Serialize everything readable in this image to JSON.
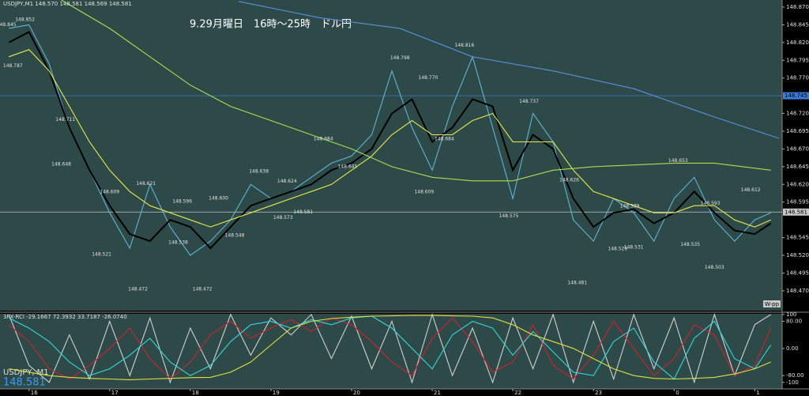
{
  "header": "USDJPY,M1  148.570 148.581 148.569 148.581",
  "symbol_label": "USDJPY, M1",
  "bid": "148.581",
  "pivot_label": "W-pp",
  "chart_data": [
    {
      "type": "line",
      "title": "9.29月曜日　16時～25時　ドル円",
      "xlim": [
        15.64,
        25.34
      ],
      "xticks": [
        16,
        17,
        18,
        19,
        20,
        21,
        22,
        23,
        {
          "value": 24,
          "label": "0"
        },
        {
          "value": 25,
          "label": "1"
        }
      ],
      "ylim": [
        148.442,
        148.88
      ],
      "yticks": [
        {
          "value": 148.87,
          "label": "148.870"
        },
        {
          "value": 148.845,
          "label": "148.845"
        },
        {
          "value": 148.82,
          "label": "148.820"
        },
        {
          "value": 148.795,
          "label": "148.795"
        },
        {
          "value": 148.77,
          "label": "148.770"
        },
        {
          "value": 148.72,
          "label": "148.720"
        },
        {
          "value": 148.695,
          "label": "148.695"
        },
        {
          "value": 148.67,
          "label": "148.670"
        },
        {
          "value": 148.645,
          "label": "148.645"
        },
        {
          "value": 148.62,
          "label": "148.620"
        },
        {
          "value": 148.595,
          "label": "148.595"
        },
        {
          "value": 148.545,
          "label": "148.545"
        },
        {
          "value": 148.52,
          "label": "148.520"
        },
        {
          "value": 148.495,
          "label": "148.495"
        },
        {
          "value": 148.47,
          "label": "148.470"
        }
      ],
      "x": [
        15.75,
        16.0,
        16.25,
        16.5,
        16.75,
        17.0,
        17.25,
        17.5,
        17.75,
        18.0,
        18.25,
        18.5,
        18.75,
        19.0,
        19.25,
        19.5,
        19.75,
        20.0,
        20.25,
        20.5,
        20.75,
        21.0,
        21.25,
        21.5,
        21.75,
        22.0,
        22.25,
        22.5,
        22.75,
        23.0,
        23.25,
        23.5,
        23.75,
        24.0,
        24.25,
        24.5,
        24.75,
        25.0,
        25.2
      ],
      "series": [
        {
          "name": "USDJPY",
          "color": "#5fb4d8",
          "values": [
            148.84,
            148.845,
            148.79,
            148.7,
            148.64,
            148.58,
            148.53,
            148.62,
            148.56,
            148.52,
            148.54,
            148.57,
            148.62,
            148.6,
            148.61,
            148.63,
            148.65,
            148.66,
            148.69,
            148.78,
            148.7,
            148.64,
            148.73,
            148.8,
            148.7,
            148.6,
            148.72,
            148.68,
            148.57,
            148.54,
            148.6,
            148.58,
            148.54,
            148.6,
            148.63,
            148.57,
            148.54,
            148.57,
            148.58
          ]
        },
        {
          "name": "MA-fast",
          "color": "#000000",
          "values": [
            148.82,
            148.835,
            148.78,
            148.7,
            148.64,
            148.59,
            148.55,
            148.54,
            148.57,
            148.56,
            148.53,
            148.56,
            148.59,
            148.6,
            148.61,
            148.62,
            148.64,
            148.65,
            148.67,
            148.72,
            148.74,
            148.68,
            148.7,
            148.74,
            148.73,
            148.64,
            148.69,
            148.67,
            148.6,
            148.56,
            148.58,
            148.585,
            148.565,
            148.58,
            148.61,
            148.58,
            148.555,
            148.55,
            148.565
          ]
        },
        {
          "name": "MA-mid",
          "color": "#e8e84a",
          "values": [
            148.8,
            148.81,
            148.78,
            148.73,
            148.68,
            148.64,
            148.61,
            148.59,
            148.58,
            148.57,
            148.56,
            148.57,
            148.58,
            148.59,
            148.6,
            148.61,
            148.62,
            148.64,
            148.66,
            148.69,
            148.71,
            148.69,
            148.69,
            148.71,
            148.72,
            148.68,
            148.68,
            148.68,
            148.64,
            148.61,
            148.6,
            148.59,
            148.58,
            148.58,
            148.59,
            148.59,
            148.57,
            148.56,
            148.57
          ]
        },
        {
          "name": "Step-line",
          "color": "#a8e050",
          "x": [
            16.4,
            17.0,
            17.5,
            18.0,
            18.5,
            19.0,
            19.5,
            20.0,
            20.5,
            21.0,
            21.5,
            22.0,
            22.5,
            23.0,
            24.0,
            24.5,
            25.2
          ],
          "values": [
            148.88,
            148.84,
            148.8,
            148.76,
            148.73,
            148.71,
            148.69,
            148.67,
            148.645,
            148.63,
            148.625,
            148.625,
            148.64,
            148.645,
            148.65,
            148.65,
            148.64
          ]
        },
        {
          "name": "MA-long",
          "color": "#5a8fe0",
          "x": [
            18.6,
            19.6,
            20.6,
            21.5,
            22.5,
            23.5,
            24.5,
            25.3
          ],
          "values": [
            148.878,
            148.855,
            148.84,
            148.8,
            148.78,
            148.755,
            148.715,
            148.685
          ]
        }
      ],
      "labels": {
        "x": [
          15.72,
          15.95,
          15.8,
          16.45,
          16.4,
          17.0,
          16.9,
          17.35,
          17.45,
          17.85,
          17.9,
          18.15,
          18.35,
          18.55,
          18.85,
          19.15,
          19.2,
          19.4,
          19.65,
          19.95,
          20.6,
          20.95,
          21.4,
          21.15,
          20.9,
          22.2,
          21.95,
          22.7,
          22.8,
          23.45,
          23.3,
          23.5,
          24.05,
          24.45,
          24.2,
          24.5,
          24.95
        ],
        "values": [
          148.845,
          148.852,
          148.787,
          148.711,
          148.648,
          148.609,
          148.521,
          148.472,
          148.621,
          148.538,
          148.596,
          148.472,
          148.6,
          148.548,
          148.638,
          148.573,
          148.624,
          148.581,
          148.684,
          148.645,
          148.798,
          148.77,
          148.816,
          148.684,
          148.609,
          148.737,
          148.575,
          148.626,
          148.481,
          148.589,
          148.529,
          148.531,
          148.653,
          148.593,
          148.535,
          148.503,
          148.612
        ],
        "value_labels": [
          "148.845",
          "148.852",
          "148.787",
          "148.711",
          "148.648",
          "148.609",
          "148.521",
          "148.472",
          "148.621",
          "148.538",
          "148.596",
          "148.472",
          "148.600",
          "148.548",
          "148.638",
          "148.573",
          "148.624",
          "148.581",
          "148.684",
          "148.645",
          "148.798",
          "148.770",
          "148.816",
          "148.684",
          "148.609",
          "148.737",
          "148.575",
          "148.626",
          "148.481",
          "148.589",
          "148.529",
          "148.531",
          "148.653",
          "148.593",
          "148.535",
          "148.503",
          "148.612"
        ]
      },
      "hlines": [
        {
          "value": 148.745,
          "label": "148.745",
          "color": "#3a7bd5"
        },
        {
          "value": 148.581,
          "label": "148.581",
          "color": "#c8c8c8"
        }
      ]
    },
    {
      "type": "line",
      "title": "3FX-RCI -29.1667 72.3932 33.7187 -26.0740",
      "xlim": [
        15.64,
        25.34
      ],
      "ylim": [
        -119,
        102
      ],
      "yticks": [
        100,
        {
          "value": 80,
          "label": "80.00"
        },
        {
          "value": 0,
          "label": "0.00"
        },
        {
          "value": -80,
          "label": "-80.00"
        },
        -100
      ],
      "x": [
        15.75,
        16.0,
        16.25,
        16.5,
        16.75,
        17.0,
        17.25,
        17.5,
        17.75,
        18.0,
        18.25,
        18.5,
        18.75,
        19.0,
        19.25,
        19.5,
        19.75,
        20.0,
        20.25,
        20.5,
        20.75,
        21.0,
        21.25,
        21.5,
        21.75,
        22.0,
        22.25,
        22.5,
        22.75,
        23.0,
        23.25,
        23.5,
        23.75,
        24.0,
        24.25,
        24.5,
        24.75,
        25.0,
        25.2
      ],
      "series": [
        {
          "name": "RCI-fast",
          "color": "#d0d0d0",
          "values": [
            100,
            -50,
            -100,
            40,
            -90,
            80,
            -80,
            90,
            -100,
            60,
            -60,
            100,
            -20,
            90,
            40,
            100,
            -30,
            95,
            -60,
            80,
            -100,
            100,
            -80,
            60,
            -100,
            90,
            -60,
            100,
            -100,
            80,
            -90,
            100,
            -60,
            90,
            -100,
            100,
            -80,
            70,
            100
          ]
        },
        {
          "name": "RCI-mid",
          "color": "#d02030",
          "values": [
            70,
            20,
            -60,
            -90,
            -50,
            0,
            60,
            -30,
            -90,
            -40,
            40,
            80,
            30,
            60,
            85,
            50,
            90,
            70,
            20,
            -40,
            -80,
            30,
            90,
            20,
            -70,
            -40,
            70,
            -50,
            -90,
            -20,
            80,
            0,
            -80,
            -30,
            70,
            40,
            -80,
            -50,
            60
          ]
        },
        {
          "name": "RCI-slow",
          "color": "#30d8e0",
          "values": [
            90,
            60,
            20,
            -40,
            -80,
            -60,
            -20,
            30,
            -40,
            -80,
            -50,
            20,
            70,
            80,
            60,
            85,
            70,
            90,
            95,
            60,
            0,
            -60,
            40,
            80,
            60,
            -20,
            50,
            -10,
            -70,
            -80,
            20,
            60,
            -40,
            -90,
            30,
            80,
            -30,
            -60,
            10
          ]
        },
        {
          "name": "RCI-long",
          "color": "#e0e040",
          "values": [
            -60,
            -70,
            -80,
            -85,
            -88,
            -90,
            -92,
            -90,
            -88,
            -86,
            -85,
            -70,
            -40,
            10,
            60,
            80,
            88,
            92,
            95,
            96,
            97,
            97,
            96,
            95,
            90,
            70,
            40,
            20,
            0,
            -30,
            -60,
            -80,
            -88,
            -90,
            -88,
            -85,
            -75,
            -60,
            -40
          ]
        }
      ]
    }
  ]
}
